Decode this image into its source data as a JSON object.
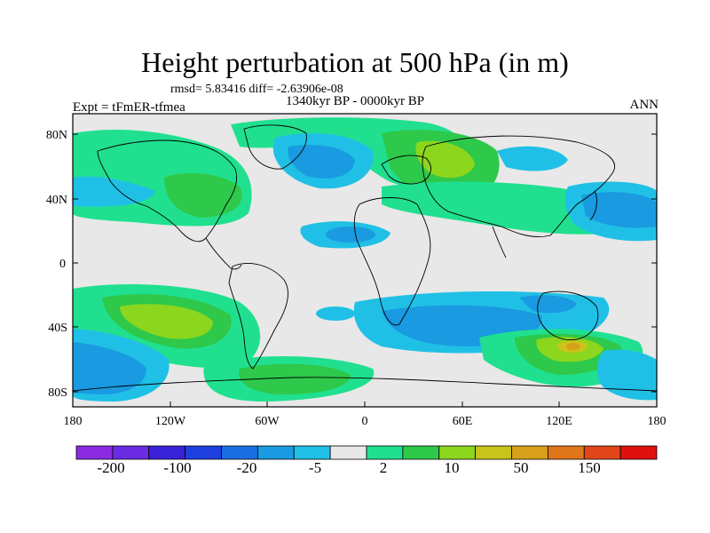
{
  "header": {
    "title": "Height perturbation at 500 hPa (in m)",
    "stats": "rmsd= 5.83416 diff= -2.63906e-08",
    "period": "1340kyr BP - 0000kyr BP",
    "experiment": "Expt = tFmER-tfmea",
    "season": "ANN"
  },
  "axes": {
    "lat_labels": [
      "80N",
      "40N",
      "0",
      "40S",
      "80S"
    ],
    "lon_labels": [
      "180",
      "120W",
      "60W",
      "0",
      "60E",
      "120E",
      "180"
    ]
  },
  "colorbar": {
    "colors": [
      "#8a2be2",
      "#6a2be2",
      "#3a22d8",
      "#1e40e0",
      "#1a6fe0",
      "#1a9ae0",
      "#20c0e6",
      "#e8e8e8",
      "#20e090",
      "#2ec84a",
      "#8cd61e",
      "#c8c41a",
      "#d8a01a",
      "#e0761a",
      "#e0461a",
      "#e01010"
    ],
    "labels": [
      "-200",
      "-100",
      "-20",
      "-5",
      "2",
      "10",
      "50",
      "150"
    ]
  }
}
